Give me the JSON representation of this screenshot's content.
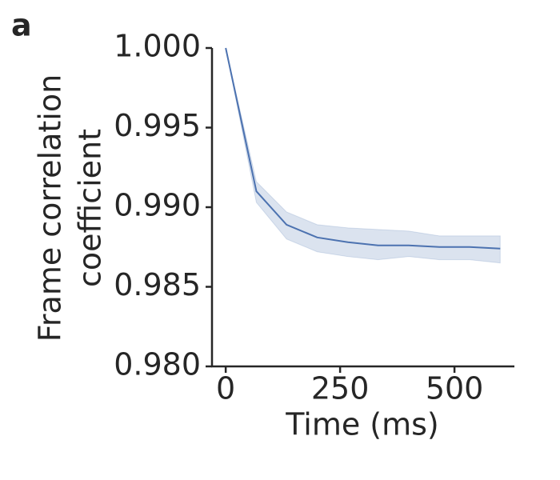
{
  "chart_data": {
    "type": "line",
    "panel_label": "a",
    "xlabel": "Time (ms)",
    "ylabel": [
      "Frame correlation",
      "coefficient"
    ],
    "x": [
      0,
      67,
      133,
      200,
      267,
      333,
      400,
      467,
      533,
      600
    ],
    "series": [
      {
        "color": "#4c72b0",
        "values": [
          1.0,
          0.991,
          0.9889,
          0.9881,
          0.9878,
          0.9876,
          0.9876,
          0.9875,
          0.9875,
          0.9874
        ],
        "upper": [
          1.0,
          0.9916,
          0.9897,
          0.9889,
          0.9887,
          0.9886,
          0.9885,
          0.9882,
          0.9882,
          0.9882
        ],
        "lower": [
          1.0,
          0.9903,
          0.988,
          0.9872,
          0.9869,
          0.9867,
          0.9869,
          0.9867,
          0.9867,
          0.9865
        ]
      }
    ],
    "xlim": [
      -30,
      631
    ],
    "xticks": [
      0,
      250,
      500
    ],
    "ylim": [
      0.98,
      1.0
    ],
    "yticks": [
      {
        "value": 0.98,
        "label": "0.980"
      },
      0.985,
      {
        "value": 0.99,
        "label": "0.990"
      },
      0.995,
      {
        "value": 1.0,
        "label": "1.000"
      }
    ]
  }
}
